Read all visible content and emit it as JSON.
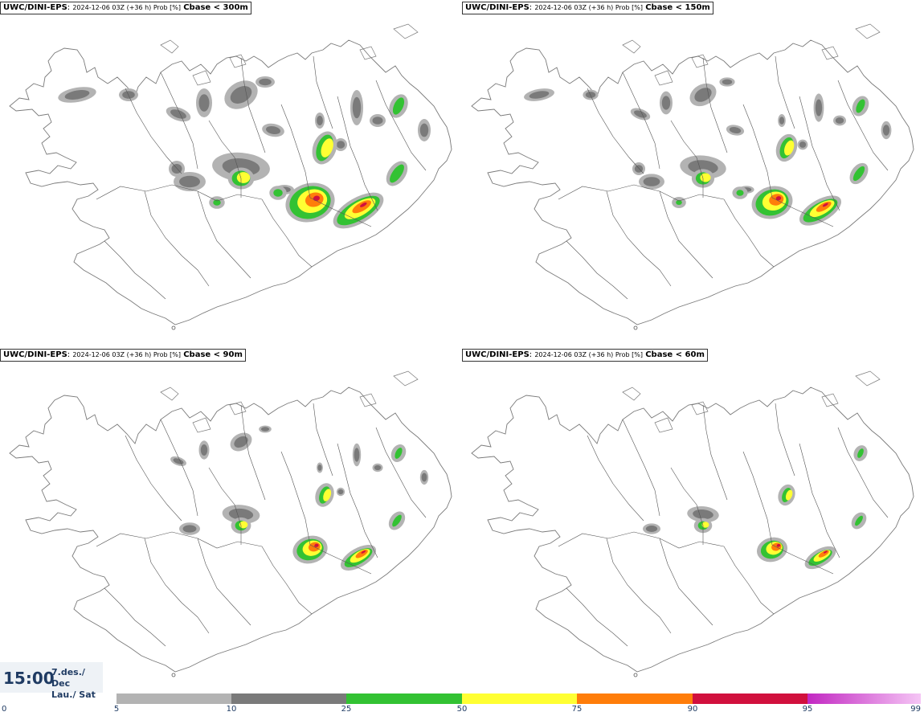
{
  "panels": [
    {
      "model": "UWC/DINI-EPS",
      "info": "2024-12-06 03Z (+36 h) Prob [%]",
      "param": "Cbase < 300m",
      "scale": 1.0
    },
    {
      "model": "UWC/DINI-EPS",
      "info": "2024-12-06 03Z (+36 h) Prob [%]",
      "param": "Cbase < 150m",
      "scale": 0.8
    },
    {
      "model": "UWC/DINI-EPS",
      "info": "2024-12-06 03Z (+36 h) Prob [%]",
      "param": "Cbase < 90m",
      "scale": 0.65
    },
    {
      "model": "UWC/DINI-EPS",
      "info": "2024-12-06 03Z (+36 h) Prob [%]",
      "param": "Cbase < 60m",
      "scale": 0.55
    }
  ],
  "valid_time": {
    "time": "15:00",
    "date_line1": "7.des./ Dec",
    "date_line2": "Lau./ Sat"
  },
  "legend": {
    "ticks": [
      "0",
      "5",
      "10",
      "25",
      "50",
      "75",
      "90",
      "95",
      "99"
    ],
    "bins": [
      {
        "from": "5",
        "to": "10",
        "color": "#b3b3b3"
      },
      {
        "from": "10",
        "to": "25",
        "color": "#7a7a7a"
      },
      {
        "from": "25",
        "to": "50",
        "color": "#33c233"
      },
      {
        "from": "50",
        "to": "75",
        "color": "#ffff33"
      },
      {
        "from": "75",
        "to": "90",
        "color": "#ff7d0a"
      },
      {
        "from": "90",
        "to": "95",
        "color": "#d1103d"
      },
      {
        "from": "95",
        "to": "99",
        "color": "#c228c2",
        "gradient_to": "#f5c6f5"
      }
    ]
  }
}
